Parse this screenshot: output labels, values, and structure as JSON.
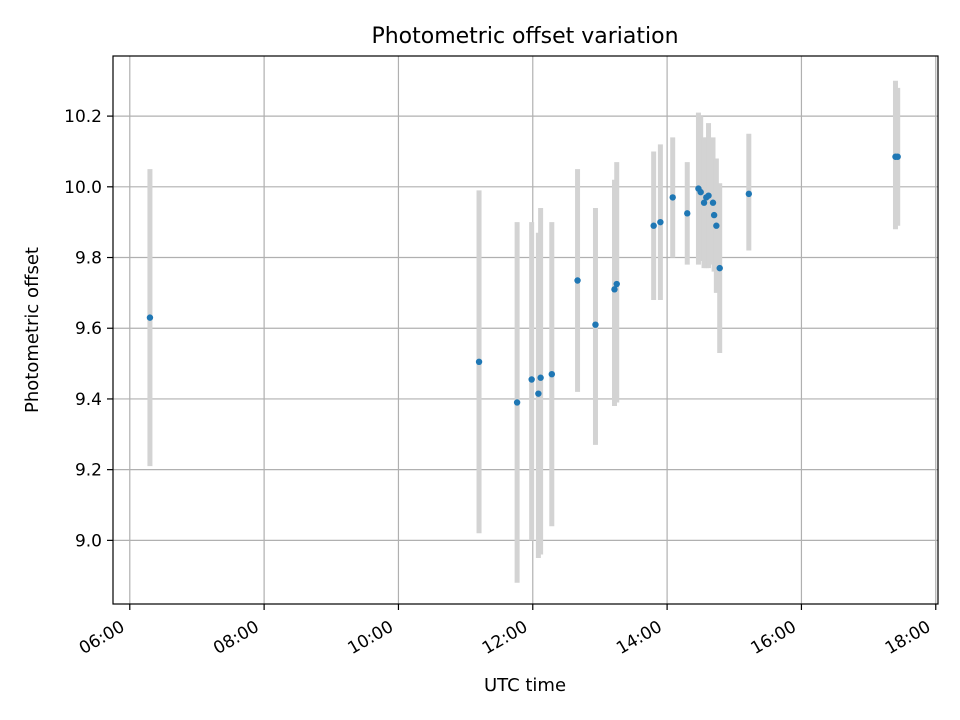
{
  "chart_data": {
    "type": "scatter",
    "title": "Photometric offset variation",
    "xlabel": "UTC time",
    "ylabel": "Photometric offset",
    "xlim": [
      "05:45",
      "18:02"
    ],
    "ylim": [
      8.82,
      10.37
    ],
    "x_ticks": [
      "06:00",
      "08:00",
      "10:00",
      "12:00",
      "14:00",
      "16:00",
      "18:00"
    ],
    "y_ticks": [
      "9.0",
      "9.2",
      "9.4",
      "9.6",
      "9.8",
      "10.0",
      "10.2"
    ],
    "grid": true,
    "point_color": "#1f77b4",
    "errorbar_color": "#d3d3d3",
    "series": [
      {
        "points": [
          {
            "x": "06:18",
            "y": 9.63,
            "lo": 9.21,
            "hi": 10.05
          },
          {
            "x": "11:12",
            "y": 9.505,
            "lo": 9.02,
            "hi": 9.99
          },
          {
            "x": "11:46",
            "y": 9.39,
            "lo": 8.88,
            "hi": 9.9
          },
          {
            "x": "11:59",
            "y": 9.455,
            "lo": 9.0,
            "hi": 9.9
          },
          {
            "x": "12:05",
            "y": 9.415,
            "lo": 8.95,
            "hi": 9.87
          },
          {
            "x": "12:07",
            "y": 9.46,
            "lo": 8.96,
            "hi": 9.94
          },
          {
            "x": "12:17",
            "y": 9.47,
            "lo": 9.04,
            "hi": 9.9
          },
          {
            "x": "12:40",
            "y": 9.735,
            "lo": 9.42,
            "hi": 10.05
          },
          {
            "x": "12:56",
            "y": 9.61,
            "lo": 9.27,
            "hi": 9.94
          },
          {
            "x": "13:13",
            "y": 9.71,
            "lo": 9.38,
            "hi": 10.02
          },
          {
            "x": "13:15",
            "y": 9.725,
            "lo": 9.39,
            "hi": 10.07
          },
          {
            "x": "13:48",
            "y": 9.89,
            "lo": 9.68,
            "hi": 10.1
          },
          {
            "x": "13:54",
            "y": 9.9,
            "lo": 9.68,
            "hi": 10.12
          },
          {
            "x": "14:05",
            "y": 9.97,
            "lo": 9.8,
            "hi": 10.14
          },
          {
            "x": "14:18",
            "y": 9.925,
            "lo": 9.78,
            "hi": 10.07
          },
          {
            "x": "14:28",
            "y": 9.995,
            "lo": 9.78,
            "hi": 10.21
          },
          {
            "x": "14:30",
            "y": 9.985,
            "lo": 9.79,
            "hi": 10.2
          },
          {
            "x": "14:33",
            "y": 9.955,
            "lo": 9.77,
            "hi": 10.14
          },
          {
            "x": "14:35",
            "y": 9.97,
            "lo": 9.77,
            "hi": 10.14
          },
          {
            "x": "14:37",
            "y": 9.975,
            "lo": 9.77,
            "hi": 10.18
          },
          {
            "x": "14:41",
            "y": 9.955,
            "lo": 9.78,
            "hi": 10.14
          },
          {
            "x": "14:42",
            "y": 9.92,
            "lo": 9.76,
            "hi": 10.08
          },
          {
            "x": "14:44",
            "y": 9.89,
            "lo": 9.7,
            "hi": 10.08
          },
          {
            "x": "14:47",
            "y": 9.77,
            "lo": 9.53,
            "hi": 10.01
          },
          {
            "x": "15:13",
            "y": 9.98,
            "lo": 9.82,
            "hi": 10.15
          },
          {
            "x": "17:24",
            "y": 10.085,
            "lo": 9.88,
            "hi": 10.3
          },
          {
            "x": "17:26",
            "y": 10.085,
            "lo": 9.89,
            "hi": 10.28
          }
        ]
      }
    ]
  }
}
